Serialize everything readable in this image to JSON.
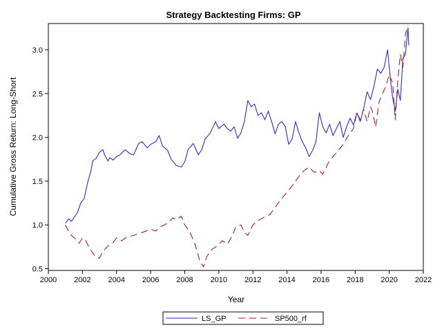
{
  "chart_data": {
    "type": "line",
    "title": "Strategy Backtesting  Firms: GP",
    "xlabel": "Year",
    "ylabel": "Cumulative Gross Return: Long-Short",
    "xlim": [
      2000,
      2022
    ],
    "ylim": [
      0.48,
      3.3
    ],
    "xticks": [
      "2000",
      "2002",
      "2004",
      "2006",
      "2008",
      "2010",
      "2012",
      "2014",
      "2016",
      "2018",
      "2020",
      "2022"
    ],
    "yticks": [
      "0.5",
      "1.0",
      "1.5",
      "2.0",
      "2.5",
      "3.0"
    ],
    "grid": false,
    "legend_position": "bottom-center",
    "series": [
      {
        "name": "LS_GP",
        "color": "#2b2bcf",
        "dash": "solid",
        "x": [
          2001.0,
          2001.2,
          2001.35,
          2001.5,
          2001.7,
          2001.9,
          2002.1,
          2002.3,
          2002.5,
          2002.6,
          2002.8,
          2003.0,
          2003.2,
          2003.3,
          2003.5,
          2003.6,
          2003.8,
          2004.0,
          2004.2,
          2004.5,
          2004.8,
          2005.0,
          2005.3,
          2005.5,
          2005.8,
          2006.0,
          2006.3,
          2006.5,
          2006.7,
          2007.0,
          2007.2,
          2007.5,
          2007.8,
          2008.0,
          2008.2,
          2008.5,
          2008.8,
          2009.0,
          2009.2,
          2009.5,
          2009.8,
          2010.0,
          2010.3,
          2010.5,
          2010.7,
          2010.9,
          2011.1,
          2011.3,
          2011.5,
          2011.7,
          2011.9,
          2012.1,
          2012.3,
          2012.5,
          2012.7,
          2012.9,
          2013.1,
          2013.3,
          2013.5,
          2013.7,
          2013.9,
          2014.1,
          2014.3,
          2014.5,
          2014.7,
          2014.9,
          2015.1,
          2015.3,
          2015.5,
          2015.7,
          2015.9,
          2016.1,
          2016.3,
          2016.5,
          2016.7,
          2016.9,
          2017.1,
          2017.3,
          2017.5,
          2017.7,
          2017.9,
          2018.1,
          2018.3,
          2018.5,
          2018.7,
          2018.9,
          2019.1,
          2019.3,
          2019.5,
          2019.7,
          2019.9,
          2020.1,
          2020.2,
          2020.35,
          2020.5,
          2020.65,
          2020.8,
          2020.95,
          2021.1
        ],
        "y": [
          1.02,
          1.07,
          1.04,
          1.08,
          1.14,
          1.25,
          1.3,
          1.48,
          1.62,
          1.73,
          1.76,
          1.83,
          1.86,
          1.8,
          1.73,
          1.77,
          1.74,
          1.78,
          1.8,
          1.86,
          1.81,
          1.8,
          1.93,
          1.95,
          1.88,
          1.92,
          1.95,
          2.02,
          1.9,
          1.85,
          1.75,
          1.68,
          1.66,
          1.72,
          1.86,
          1.93,
          1.8,
          1.86,
          1.98,
          2.05,
          2.18,
          2.1,
          2.15,
          2.1,
          2.07,
          2.12,
          1.99,
          2.05,
          2.18,
          2.42,
          2.35,
          2.38,
          2.25,
          2.28,
          2.2,
          2.3,
          2.18,
          2.04,
          2.15,
          2.18,
          2.12,
          1.92,
          1.98,
          2.18,
          2.05,
          1.95,
          1.88,
          1.78,
          1.85,
          1.95,
          2.28,
          2.12,
          2.05,
          2.15,
          2.02,
          2.1,
          2.18,
          2.0,
          2.12,
          2.22,
          2.14,
          2.28,
          2.18,
          2.33,
          2.52,
          2.43,
          2.58,
          2.78,
          2.73,
          2.8,
          3.0,
          2.6,
          2.45,
          2.3,
          2.55,
          2.42,
          2.9,
          2.95,
          3.25
        ],
        "end_y": 3.05
      },
      {
        "name": "SP500_rf",
        "color": "#a01c30",
        "dash": "10,6",
        "x": [
          2001.0,
          2001.2,
          2001.4,
          2001.6,
          2001.8,
          2002.0,
          2002.2,
          2002.4,
          2002.6,
          2002.8,
          2003.0,
          2003.2,
          2003.5,
          2003.8,
          2004.0,
          2004.3,
          2004.6,
          2005.0,
          2005.3,
          2005.6,
          2006.0,
          2006.3,
          2006.6,
          2007.0,
          2007.3,
          2007.5,
          2007.8,
          2008.0,
          2008.3,
          2008.6,
          2008.9,
          2009.1,
          2009.3,
          2009.6,
          2009.9,
          2010.2,
          2010.5,
          2010.8,
          2011.0,
          2011.3,
          2011.5,
          2011.7,
          2012.0,
          2012.3,
          2012.6,
          2013.0,
          2013.3,
          2013.6,
          2013.9,
          2014.2,
          2014.5,
          2014.8,
          2015.0,
          2015.3,
          2015.6,
          2015.9,
          2016.1,
          2016.4,
          2016.7,
          2017.0,
          2017.3,
          2017.6,
          2017.9,
          2018.1,
          2018.3,
          2018.5,
          2018.7,
          2018.9,
          2019.0,
          2019.2,
          2019.4,
          2019.6,
          2019.8,
          2020.0,
          2020.2,
          2020.35,
          2020.5,
          2020.65,
          2020.8,
          2020.95,
          2021.1
        ],
        "y": [
          1.0,
          0.92,
          0.87,
          0.84,
          0.79,
          0.85,
          0.82,
          0.74,
          0.68,
          0.63,
          0.62,
          0.7,
          0.76,
          0.8,
          0.85,
          0.82,
          0.86,
          0.88,
          0.9,
          0.92,
          0.95,
          0.93,
          0.98,
          1.02,
          1.08,
          1.06,
          1.1,
          1.0,
          0.92,
          0.78,
          0.58,
          0.52,
          0.64,
          0.72,
          0.76,
          0.82,
          0.78,
          0.88,
          0.98,
          1.0,
          0.92,
          0.88,
          1.0,
          1.05,
          1.08,
          1.12,
          1.2,
          1.28,
          1.35,
          1.42,
          1.5,
          1.58,
          1.62,
          1.66,
          1.6,
          1.62,
          1.58,
          1.7,
          1.78,
          1.85,
          1.92,
          2.02,
          2.1,
          2.28,
          2.2,
          2.32,
          2.18,
          2.35,
          2.3,
          2.12,
          2.4,
          2.5,
          2.58,
          2.72,
          2.62,
          2.2,
          2.65,
          2.95,
          2.8,
          3.18,
          3.28
        ]
      }
    ]
  }
}
